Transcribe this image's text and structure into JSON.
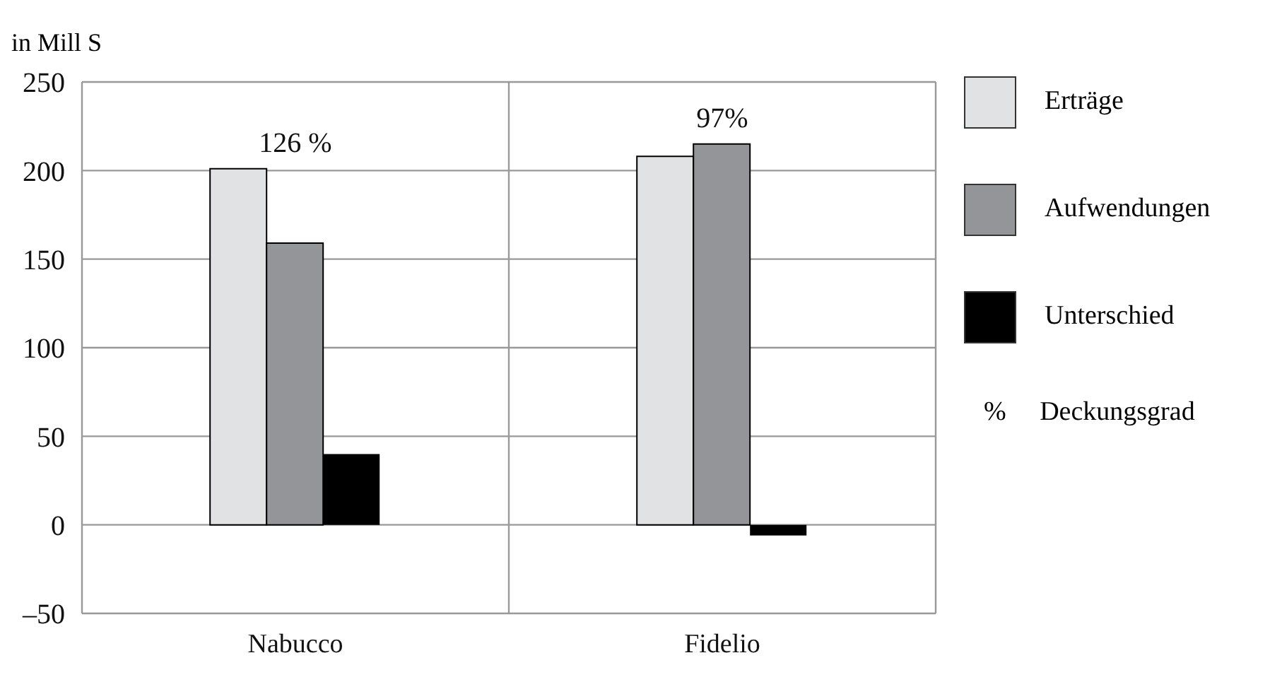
{
  "chart_data": {
    "type": "bar",
    "ylabel": "in Mill S",
    "categories": [
      "Nabucco",
      "Fidelio"
    ],
    "series": [
      {
        "name": "Erträge",
        "color": "#e1e2e4",
        "values": [
          201,
          208
        ]
      },
      {
        "name": "Aufwendungen",
        "color": "#949598",
        "values": [
          159,
          215
        ]
      },
      {
        "name": "Unterschied",
        "color": "#000000",
        "values": [
          40,
          -6
        ]
      }
    ],
    "ylim": [
      -50,
      250
    ],
    "yticks": [
      {
        "value": -50,
        "label": "–50"
      },
      0,
      50,
      100,
      150,
      200,
      250
    ],
    "grid": true,
    "legend": "right",
    "annotations": [
      "126 %",
      "97%",
      "% Deckungsgrad"
    ]
  }
}
